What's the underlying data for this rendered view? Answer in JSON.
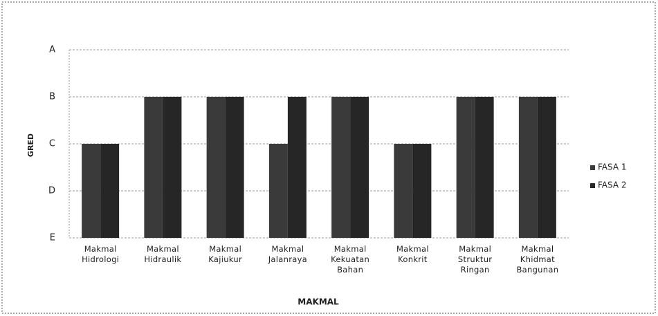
{
  "chart_data": {
    "type": "bar",
    "categories": [
      "Makmal Hidrologi",
      "Makmal Hidraulik",
      "Makmal Kajiukur",
      "Makmal Jalanraya",
      "Makmal Kekuatan Bahan",
      "Makmal Konkrit",
      "Makmal Struktur Ringan",
      "Makmal Khidmat Bangunan"
    ],
    "series": [
      {
        "name": "FASA 1",
        "color": "#3a3a3a",
        "values": [
          2,
          3,
          3,
          2,
          3,
          2,
          3,
          3
        ]
      },
      {
        "name": "FASA 2",
        "color": "#262626",
        "values": [
          2,
          3,
          3,
          3,
          3,
          2,
          3,
          3
        ]
      }
    ],
    "ylim": [
      0,
      4
    ],
    "yticks": [
      {
        "value": 0,
        "label": "E"
      },
      {
        "value": 1,
        "label": "D"
      },
      {
        "value": 2,
        "label": "C"
      },
      {
        "value": 3,
        "label": "B"
      },
      {
        "value": 4,
        "label": "A"
      }
    ],
    "ylabel": "GRED",
    "xlabel": "MAKMAL",
    "grid": true,
    "legend": "right"
  }
}
